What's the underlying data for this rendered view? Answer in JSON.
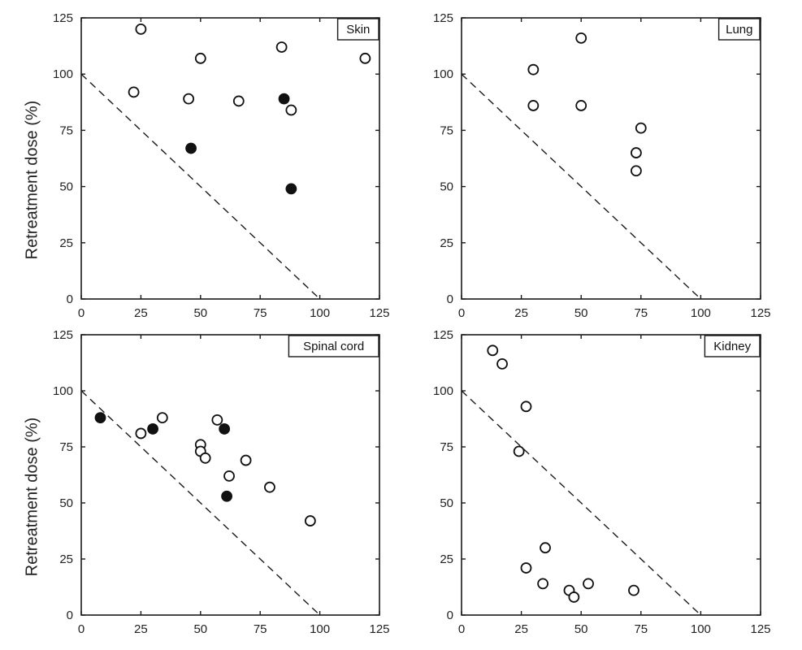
{
  "chart_data": [
    {
      "type": "scatter",
      "title": "Skin",
      "ylabel": "Retreatment dose (%)",
      "xlabel": "",
      "xlim": [
        0,
        125
      ],
      "ylim": [
        0,
        125
      ],
      "x_ticks": [
        "0",
        "25",
        "50",
        "75",
        "100",
        "125"
      ],
      "y_ticks": [
        "0",
        "25",
        "50",
        "75",
        "100",
        "125"
      ],
      "reference_line": {
        "style": "dashed",
        "from": [
          0,
          100
        ],
        "to": [
          100,
          0
        ]
      },
      "series": [
        {
          "marker": "open",
          "points": [
            [
              25,
              120
            ],
            [
              22,
              92
            ],
            [
              45,
              89
            ],
            [
              50,
              107
            ],
            [
              66,
              88
            ],
            [
              84,
              112
            ],
            [
              88,
              84
            ],
            [
              119,
              107
            ]
          ]
        },
        {
          "marker": "filled",
          "points": [
            [
              46,
              67
            ],
            [
              85,
              89
            ],
            [
              88,
              49
            ]
          ]
        }
      ]
    },
    {
      "type": "scatter",
      "title": "Lung",
      "ylabel": "",
      "xlabel": "",
      "xlim": [
        0,
        125
      ],
      "ylim": [
        0,
        125
      ],
      "x_ticks": [
        "0",
        "25",
        "50",
        "75",
        "100",
        "125"
      ],
      "y_ticks": [
        "0",
        "25",
        "50",
        "75",
        "100",
        "125"
      ],
      "reference_line": {
        "style": "dashed",
        "from": [
          0,
          100
        ],
        "to": [
          100,
          0
        ]
      },
      "series": [
        {
          "marker": "open",
          "points": [
            [
              30,
              102
            ],
            [
              30,
              86
            ],
            [
              50,
              116
            ],
            [
              50,
              86
            ],
            [
              73,
              65
            ],
            [
              73,
              57
            ],
            [
              75,
              76
            ]
          ]
        }
      ]
    },
    {
      "type": "scatter",
      "title": "Spinal cord",
      "ylabel": "Retreatment dose (%)",
      "xlabel": "",
      "xlim": [
        0,
        125
      ],
      "ylim": [
        0,
        125
      ],
      "x_ticks": [
        "0",
        "25",
        "50",
        "75",
        "100",
        "125"
      ],
      "y_ticks": [
        "0",
        "25",
        "50",
        "75",
        "100",
        "125"
      ],
      "reference_line": {
        "style": "dashed",
        "from": [
          0,
          100
        ],
        "to": [
          100,
          0
        ]
      },
      "series": [
        {
          "marker": "open",
          "points": [
            [
              25,
              81
            ],
            [
              34,
              88
            ],
            [
              50,
              76
            ],
            [
              50,
              73
            ],
            [
              52,
              70
            ],
            [
              57,
              87
            ],
            [
              62,
              62
            ],
            [
              69,
              69
            ],
            [
              79,
              57
            ],
            [
              96,
              42
            ]
          ]
        },
        {
          "marker": "filled",
          "points": [
            [
              8,
              88
            ],
            [
              30,
              83
            ],
            [
              60,
              83
            ],
            [
              61,
              53
            ]
          ]
        }
      ]
    },
    {
      "type": "scatter",
      "title": "Kidney",
      "ylabel": "",
      "xlabel": "",
      "xlim": [
        0,
        125
      ],
      "ylim": [
        0,
        125
      ],
      "x_ticks": [
        "0",
        "25",
        "50",
        "75",
        "100",
        "125"
      ],
      "y_ticks": [
        "0",
        "25",
        "50",
        "75",
        "100",
        "125"
      ],
      "reference_line": {
        "style": "dashed",
        "from": [
          0,
          100
        ],
        "to": [
          100,
          0
        ]
      },
      "series": [
        {
          "marker": "open",
          "points": [
            [
              13,
              118
            ],
            [
              17,
              112
            ],
            [
              27,
              93
            ],
            [
              24,
              73
            ],
            [
              27,
              21
            ],
            [
              35,
              30
            ],
            [
              34,
              14
            ],
            [
              45,
              11
            ],
            [
              47,
              8
            ],
            [
              53,
              14
            ],
            [
              72,
              11
            ]
          ]
        }
      ]
    }
  ]
}
